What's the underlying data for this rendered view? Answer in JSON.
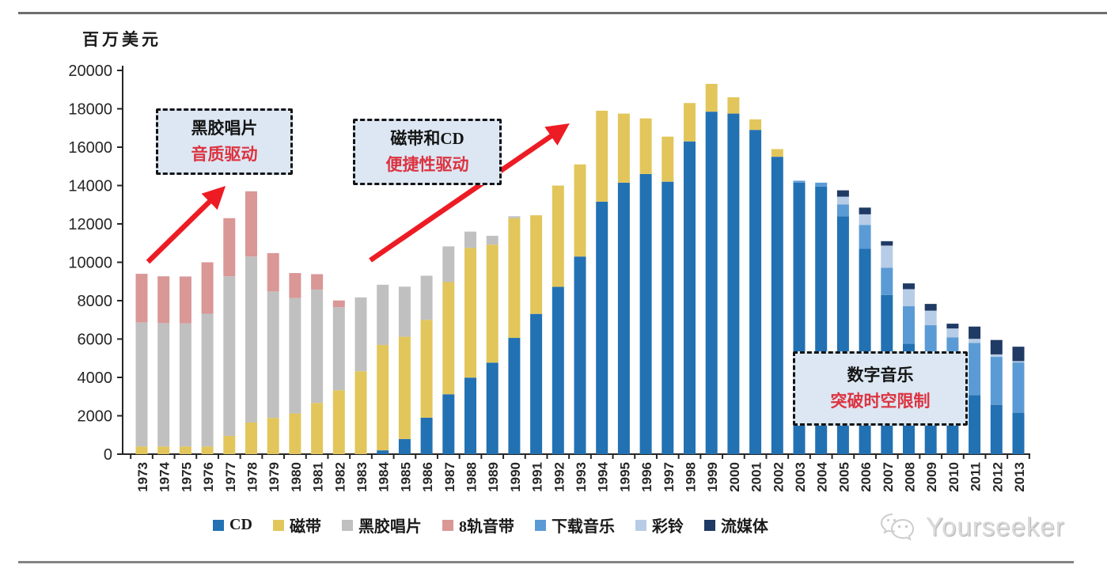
{
  "page": {
    "units_label": "百万美元",
    "watermark_text": "Yourseeker"
  },
  "annotations": [
    {
      "line1": "黑胶唱片",
      "line2": "音质驱动"
    },
    {
      "line1": "磁带和CD",
      "line2": "便捷性驱动"
    },
    {
      "line1": "数字音乐",
      "line2": "突破时空限制"
    }
  ],
  "colors": {
    "annotation_fill": "#dce7f3",
    "annotation_text_accent": "#dd3340",
    "arrow_red": "#ed1c24",
    "axis": "#262626"
  },
  "chart_data": {
    "type": "bar",
    "stacked": true,
    "title": "",
    "ylabel": "百万美元",
    "xlabel": "",
    "ylim": [
      0,
      20000
    ],
    "ytick_step": 2000,
    "grid": false,
    "legend_position": "bottom",
    "categories": [
      "1973",
      "1974",
      "1975",
      "1976",
      "1977",
      "1978",
      "1979",
      "1980",
      "1981",
      "1982",
      "1983",
      "1984",
      "1985",
      "1986",
      "1987",
      "1988",
      "1989",
      "1990",
      "1991",
      "1992",
      "1993",
      "1994",
      "1995",
      "1996",
      "1997",
      "1998",
      "1999",
      "2000",
      "2001",
      "2002",
      "2003",
      "2004",
      "2005",
      "2006",
      "2007",
      "2008",
      "2009",
      "2010",
      "2011",
      "2012",
      "2013"
    ],
    "series": [
      {
        "name": "CD",
        "color": "#2271b3",
        "values": [
          0,
          0,
          0,
          0,
          0,
          0,
          0,
          0,
          0,
          0,
          0,
          200,
          790,
          1900,
          3120,
          3990,
          4770,
          6060,
          7310,
          8720,
          10300,
          13160,
          14150,
          14600,
          14200,
          16300,
          17850,
          17750,
          16900,
          15500,
          14150,
          13950,
          12400,
          10700,
          8300,
          5750,
          4650,
          3650,
          3080,
          2570,
          2160
        ]
      },
      {
        "name": "磁带",
        "color": "#e2c65b",
        "values": [
          400,
          400,
          400,
          400,
          950,
          1650,
          1890,
          2120,
          2670,
          3330,
          4320,
          5490,
          5330,
          5100,
          5850,
          6760,
          6150,
          6240,
          5140,
          5280,
          4800,
          4740,
          3600,
          2900,
          2350,
          2000,
          1450,
          850,
          550,
          400,
          0,
          0,
          0,
          0,
          0,
          0,
          0,
          0,
          0,
          0,
          0
        ]
      },
      {
        "name": "黑胶唱片",
        "color": "#c0c0c0",
        "values": [
          6470,
          6430,
          6420,
          6920,
          8320,
          8650,
          6590,
          6020,
          5910,
          4330,
          3850,
          3140,
          2610,
          2300,
          1860,
          850,
          460,
          100,
          0,
          0,
          0,
          0,
          0,
          0,
          0,
          0,
          0,
          0,
          0,
          0,
          0,
          0,
          0,
          0,
          0,
          0,
          0,
          0,
          0,
          0,
          0
        ]
      },
      {
        "name": "8轨音带",
        "color": "#d99795",
        "values": [
          2530,
          2440,
          2440,
          2680,
          3030,
          3400,
          2000,
          1300,
          800,
          350,
          0,
          0,
          0,
          0,
          0,
          0,
          0,
          0,
          0,
          0,
          0,
          0,
          0,
          0,
          0,
          0,
          0,
          0,
          0,
          0,
          0,
          0,
          0,
          0,
          0,
          0,
          0,
          0,
          0,
          0,
          0
        ]
      },
      {
        "name": "下载音乐",
        "color": "#5b9bd5",
        "values": [
          0,
          0,
          0,
          0,
          0,
          0,
          0,
          0,
          0,
          0,
          0,
          0,
          0,
          0,
          0,
          0,
          0,
          0,
          0,
          0,
          0,
          0,
          0,
          0,
          0,
          0,
          0,
          0,
          0,
          0,
          100,
          200,
          620,
          1250,
          1420,
          1960,
          2070,
          2440,
          2720,
          2500,
          2620
        ]
      },
      {
        "name": "彩铃",
        "color": "#b7cce6",
        "values": [
          0,
          0,
          0,
          0,
          0,
          0,
          0,
          0,
          0,
          0,
          0,
          0,
          0,
          0,
          0,
          0,
          0,
          0,
          0,
          0,
          0,
          0,
          0,
          0,
          0,
          0,
          0,
          0,
          0,
          0,
          0,
          0,
          400,
          550,
          1150,
          890,
          760,
          460,
          210,
          130,
          70
        ]
      },
      {
        "name": "流媒体",
        "color": "#1f3a64",
        "values": [
          0,
          0,
          0,
          0,
          0,
          0,
          0,
          0,
          0,
          0,
          0,
          0,
          0,
          0,
          0,
          0,
          0,
          0,
          0,
          0,
          0,
          0,
          0,
          0,
          0,
          0,
          0,
          0,
          0,
          0,
          0,
          0,
          330,
          350,
          230,
          300,
          350,
          250,
          640,
          750,
          750
        ]
      }
    ]
  }
}
